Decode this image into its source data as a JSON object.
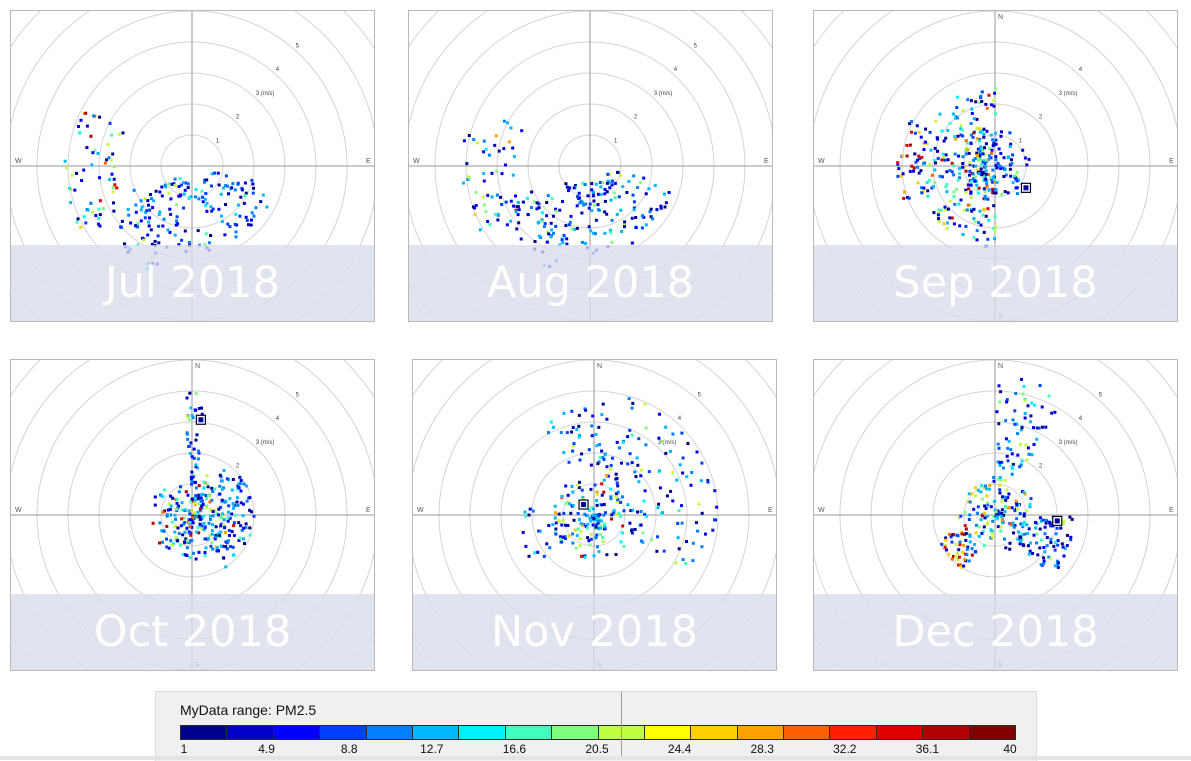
{
  "chart_data": [
    {
      "type": "scatter",
      "subtype": "polar-wind-plot",
      "title": "Jul 2018",
      "radial_unit": "m/s",
      "ring_labels": [
        "1",
        "2",
        "3 (m/s)",
        "4",
        "5"
      ],
      "compass": {
        "west": "W",
        "east": "E",
        "north": "",
        "south": ""
      },
      "clusters": [
        {
          "speed_min": 0.5,
          "speed_max": 2.8,
          "angle_min": 100,
          "angle_max": 240,
          "count": 150,
          "color_bias": "blue"
        },
        {
          "speed_min": 2.5,
          "speed_max": 4.2,
          "angle_min": 240,
          "angle_max": 300,
          "count": 55,
          "color_bias": "mixed"
        },
        {
          "speed_min": 1.8,
          "speed_max": 3.6,
          "angle_min": 200,
          "angle_max": 250,
          "count": 40,
          "color_bias": "blue"
        }
      ],
      "markers": []
    },
    {
      "type": "scatter",
      "subtype": "polar-wind-plot",
      "title": "Aug 2018",
      "radial_unit": "m/s",
      "ring_labels": [
        "1",
        "2",
        "3 (m/s)",
        "4",
        "5"
      ],
      "compass": {
        "west": "W",
        "east": "E",
        "north": "",
        "south": ""
      },
      "clusters": [
        {
          "speed_min": 0.5,
          "speed_max": 2.8,
          "angle_min": 100,
          "angle_max": 240,
          "count": 150,
          "color_bias": "blue"
        },
        {
          "speed_min": 2.5,
          "speed_max": 4.2,
          "angle_min": 240,
          "angle_max": 300,
          "count": 55,
          "color_bias": "mixed"
        },
        {
          "speed_min": 1.8,
          "speed_max": 3.6,
          "angle_min": 200,
          "angle_max": 250,
          "count": 40,
          "color_bias": "blue"
        }
      ],
      "markers": []
    },
    {
      "type": "scatter",
      "subtype": "polar-wind-plot",
      "title": "Sep 2018",
      "radial_unit": "m/s",
      "ring_labels": [
        "1",
        "2",
        "3 (m/s)",
        "4"
      ],
      "compass": {
        "west": "W",
        "east": "E",
        "north": "N",
        "south": "S"
      },
      "clusters": [
        {
          "speed_min": 0.3,
          "speed_max": 2.6,
          "angle_min": 180,
          "angle_max": 360,
          "count": 260,
          "color_bias": "mixed"
        },
        {
          "speed_min": 0.0,
          "speed_max": 1.2,
          "angle_min": 0,
          "angle_max": 360,
          "count": 90,
          "color_bias": "blue"
        },
        {
          "speed_min": 2.3,
          "speed_max": 3.2,
          "angle_min": 250,
          "angle_max": 300,
          "count": 40,
          "color_bias": "warm"
        }
      ],
      "markers": [
        {
          "speed": 1.2,
          "angle": 125
        }
      ]
    },
    {
      "type": "scatter",
      "subtype": "polar-wind-plot",
      "title": "Oct 2018",
      "radial_unit": "m/s",
      "ring_labels": [
        "2",
        "3 (m/s)",
        "4",
        "5"
      ],
      "compass": {
        "west": "W",
        "east": "E",
        "north": "N",
        "south": "S"
      },
      "clusters": [
        {
          "speed_min": 0.0,
          "speed_max": 1.4,
          "angle_min": 0,
          "angle_max": 360,
          "count": 230,
          "color_bias": "mixed"
        },
        {
          "speed_min": 1.0,
          "speed_max": 4.2,
          "angle_min": 355,
          "angle_max": 365,
          "count": 40,
          "color_bias": "blue"
        },
        {
          "speed_min": 0.8,
          "speed_max": 2.0,
          "angle_min": 30,
          "angle_max": 150,
          "count": 90,
          "color_bias": "blue"
        }
      ],
      "markers": [
        {
          "speed": 3.1,
          "angle": 5
        }
      ]
    },
    {
      "type": "scatter",
      "subtype": "polar-wind-plot",
      "title": "Nov 2018",
      "radial_unit": "m/s",
      "ring_labels": [
        "3 (m/s)",
        "4",
        "5"
      ],
      "compass": {
        "west": "W",
        "east": "E",
        "north": "N",
        "south": "S"
      },
      "clusters": [
        {
          "speed_min": 0.0,
          "speed_max": 1.4,
          "angle_min": 0,
          "angle_max": 360,
          "count": 170,
          "color_bias": "mixed"
        },
        {
          "speed_min": 1.2,
          "speed_max": 4.0,
          "angle_min": 0,
          "angle_max": 120,
          "count": 120,
          "color_bias": "blue"
        },
        {
          "speed_min": 1.5,
          "speed_max": 3.5,
          "angle_min": 330,
          "angle_max": 365,
          "count": 30,
          "color_bias": "blue"
        },
        {
          "speed_min": 1.0,
          "speed_max": 2.5,
          "angle_min": 230,
          "angle_max": 280,
          "count": 25,
          "color_bias": "blue"
        }
      ],
      "markers": [
        {
          "speed": 0.5,
          "angle": 315
        }
      ]
    },
    {
      "type": "scatter",
      "subtype": "polar-wind-plot",
      "title": "Dec 2018",
      "radial_unit": "m/s",
      "ring_labels": [
        "2",
        "3 (m/s)",
        "4",
        "5"
      ],
      "compass": {
        "west": "W",
        "east": "E",
        "north": "N",
        "south": "S"
      },
      "clusters": [
        {
          "speed_min": 0.0,
          "speed_max": 1.3,
          "angle_min": 0,
          "angle_max": 360,
          "count": 150,
          "color_bias": "mixed"
        },
        {
          "speed_min": 1.0,
          "speed_max": 2.6,
          "angle_min": 90,
          "angle_max": 140,
          "count": 80,
          "color_bias": "blue"
        },
        {
          "speed_min": 1.0,
          "speed_max": 2.0,
          "angle_min": 210,
          "angle_max": 250,
          "count": 50,
          "color_bias": "warm"
        },
        {
          "speed_min": 1.2,
          "speed_max": 4.5,
          "angle_min": 0,
          "angle_max": 30,
          "count": 70,
          "color_bias": "blue"
        }
      ],
      "markers": [
        {
          "speed": 2.0,
          "angle": 95
        }
      ]
    }
  ],
  "legend": {
    "title": "MyData range: PM2.5",
    "ticks": [
      "1",
      "4.9",
      "8.8",
      "12.7",
      "16.6",
      "20.5",
      "24.4",
      "28.3",
      "32.2",
      "36.1",
      "40"
    ],
    "colors": [
      "#00008f",
      "#0000c8",
      "#0000ff",
      "#0040ff",
      "#0080ff",
      "#00b8ff",
      "#00f0ff",
      "#40ffc0",
      "#80ff80",
      "#c0ff40",
      "#ffff00",
      "#ffd000",
      "#ffa000",
      "#ff6000",
      "#ff2000",
      "#e00000",
      "#b00000",
      "#800000"
    ]
  }
}
